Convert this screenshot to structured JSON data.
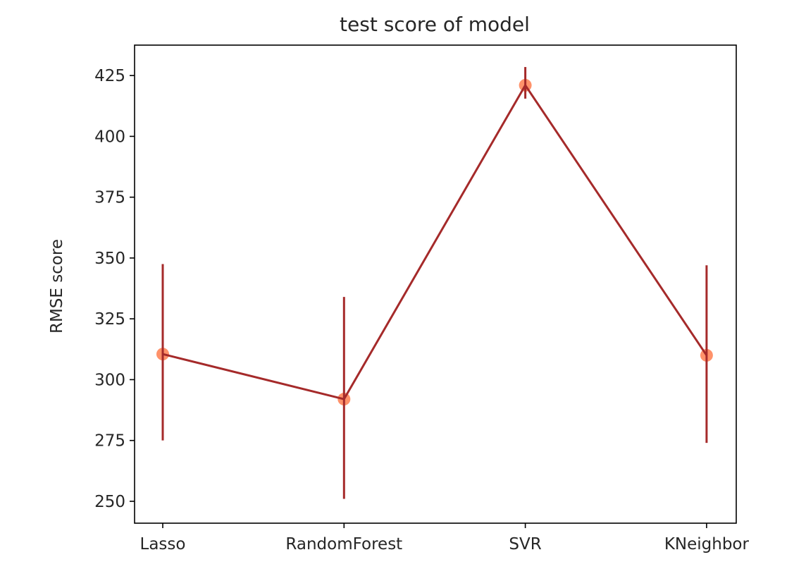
{
  "chart_data": {
    "type": "line",
    "title": "test score of model",
    "xlabel": "",
    "ylabel": "RMSE score",
    "categories": [
      "Lasso",
      "RandomForest",
      "SVR",
      "KNeighbor"
    ],
    "series": [
      {
        "values": [
          310.5,
          292.0,
          421.0,
          310.0
        ],
        "error_low": [
          275.0,
          251.0,
          415.5,
          274.0
        ],
        "error_high": [
          347.5,
          334.0,
          428.5,
          347.0
        ]
      }
    ],
    "ylim": [
      241.0,
      437.5
    ],
    "yticks": [
      250,
      275,
      300,
      325,
      350,
      375,
      400,
      425
    ],
    "grid": false,
    "legend": "none",
    "colors": {
      "line": "#a52a2a",
      "errorbar": "#a52a2a",
      "marker": "#ff7f50",
      "axis": "#000000",
      "text": "#262626"
    }
  }
}
